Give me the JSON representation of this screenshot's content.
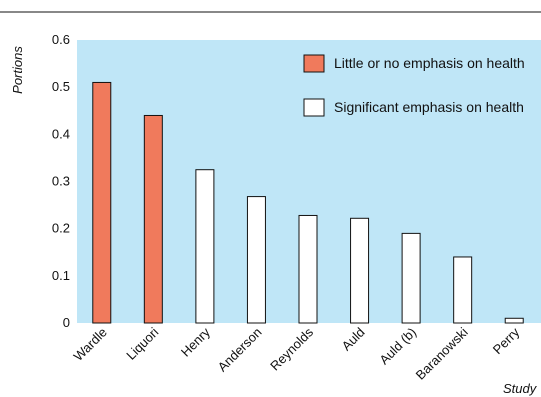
{
  "chart_data": {
    "type": "bar",
    "title": "",
    "xlabel": "Study",
    "ylabel": "Portions",
    "ylim": [
      0,
      0.6
    ],
    "yticks": [
      "0",
      "0.1",
      "0.2",
      "0.3",
      "0.4",
      "0.5",
      "0.6"
    ],
    "grid": false,
    "legend_position": "top-right",
    "colors": {
      "plot_background": "#bfe6f7",
      "little_emphasis": "#f07a5c",
      "significant_emphasis": "#ffffff",
      "bar_outline": "#111111"
    },
    "legend": [
      {
        "label": "Little or no emphasis on health",
        "color": "#f07a5c"
      },
      {
        "label": "Significant emphasis on health",
        "color": "#ffffff"
      }
    ],
    "bars": [
      {
        "category": "Wardle",
        "value": 0.51,
        "group": "little"
      },
      {
        "category": "Liquori",
        "value": 0.44,
        "group": "little"
      },
      {
        "category": "Henry",
        "value": 0.325,
        "group": "significant"
      },
      {
        "category": "Anderson",
        "value": 0.268,
        "group": "significant"
      },
      {
        "category": "Reynolds",
        "value": 0.228,
        "group": "significant"
      },
      {
        "category": "Auld",
        "value": 0.222,
        "group": "significant"
      },
      {
        "category": "Auld (b)",
        "value": 0.19,
        "group": "significant"
      },
      {
        "category": "Baranowski",
        "value": 0.14,
        "group": "significant"
      },
      {
        "category": "Perry",
        "value": 0.01,
        "group": "significant"
      }
    ]
  }
}
